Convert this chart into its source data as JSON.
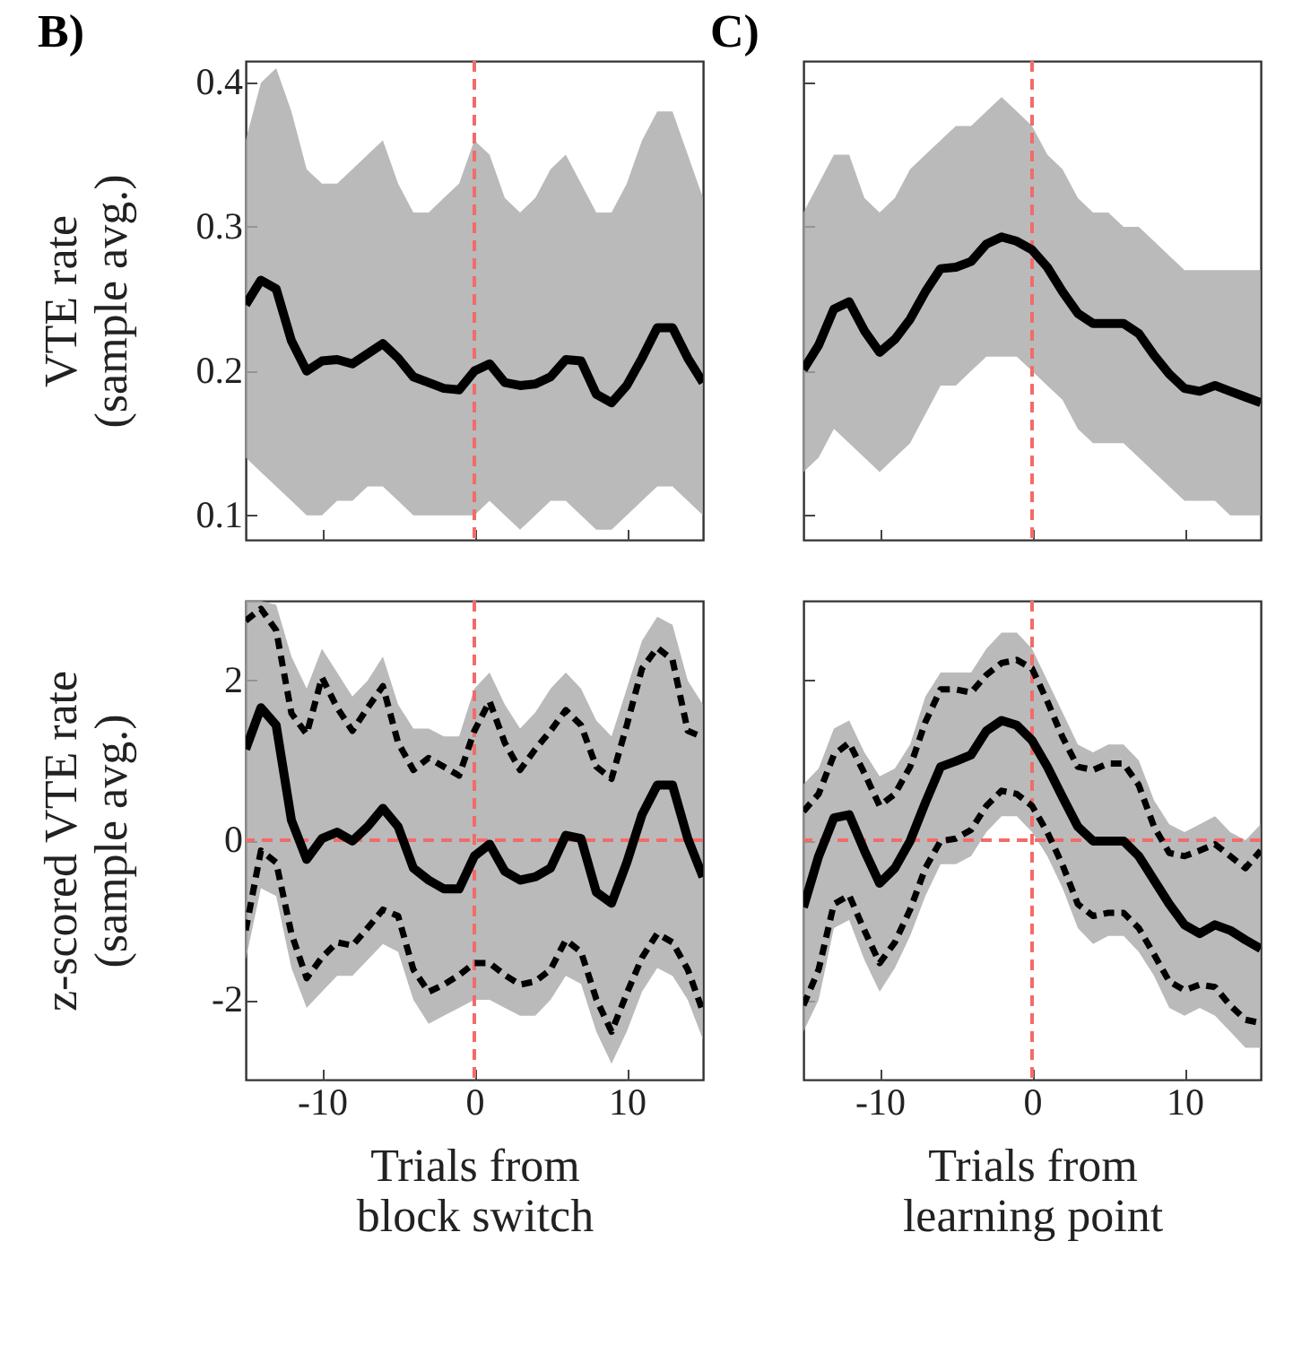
{
  "chart_data": [
    {
      "type": "line",
      "title": "B)",
      "ylabel": "VTE rate\n(sample avg.)",
      "x": [
        -15,
        -14,
        -13,
        -12,
        -11,
        -10,
        -9,
        -8,
        -7,
        -6,
        -5,
        -4,
        -3,
        -2,
        -1,
        0,
        1,
        2,
        3,
        4,
        5,
        6,
        7,
        8,
        9,
        10,
        11,
        12,
        13,
        14,
        15
      ],
      "xlim": [
        -15,
        15
      ],
      "xticks": [
        -10,
        0,
        10
      ],
      "ylim": [
        0.083,
        0.415
      ],
      "yticks": [
        0.1,
        0.2,
        0.3,
        0.4
      ],
      "tick_labels": "y",
      "series": [
        {
          "color": "#000000",
          "values": [
            0.246,
            0.263,
            0.257,
            0.221,
            0.2,
            0.207,
            0.208,
            0.205,
            0.212,
            0.219,
            0.209,
            0.196,
            0.192,
            0.188,
            0.187,
            0.2,
            0.205,
            0.192,
            0.19,
            0.191,
            0.196,
            0.208,
            0.207,
            0.184,
            0.178,
            0.19,
            0.209,
            0.23,
            0.23,
            0.209,
            0.192
          ],
          "upper": [
            0.36,
            0.4,
            0.41,
            0.38,
            0.34,
            0.33,
            0.33,
            0.34,
            0.35,
            0.36,
            0.33,
            0.31,
            0.31,
            0.32,
            0.33,
            0.36,
            0.35,
            0.32,
            0.31,
            0.32,
            0.34,
            0.35,
            0.33,
            0.31,
            0.31,
            0.33,
            0.36,
            0.38,
            0.38,
            0.35,
            0.32
          ],
          "lower": [
            0.14,
            0.13,
            0.12,
            0.11,
            0.1,
            0.1,
            0.11,
            0.11,
            0.12,
            0.12,
            0.11,
            0.1,
            0.1,
            0.1,
            0.1,
            0.1,
            0.11,
            0.1,
            0.09,
            0.1,
            0.11,
            0.11,
            0.1,
            0.09,
            0.09,
            0.1,
            0.11,
            0.12,
            0.12,
            0.11,
            0.1
          ]
        }
      ],
      "ref_lines": [
        {
          "axis": "x",
          "value": 0,
          "color": "#f26b6b",
          "line_style": "dashed"
        }
      ]
    },
    {
      "type": "line",
      "title": "C)",
      "x": [
        -15,
        -14,
        -13,
        -12,
        -11,
        -10,
        -9,
        -8,
        -7,
        -6,
        -5,
        -4,
        -3,
        -2,
        -1,
        0,
        1,
        2,
        3,
        4,
        5,
        6,
        7,
        8,
        9,
        10,
        11,
        12,
        13,
        14,
        15
      ],
      "xlim": [
        -15,
        15
      ],
      "xticks": [
        -10,
        0,
        10
      ],
      "ylim": [
        0.083,
        0.415
      ],
      "yticks": [
        0.1,
        0.2,
        0.3,
        0.4
      ],
      "tick_labels": false,
      "series": [
        {
          "color": "#000000",
          "values": [
            0.201,
            0.218,
            0.243,
            0.248,
            0.228,
            0.213,
            0.222,
            0.236,
            0.255,
            0.271,
            0.272,
            0.276,
            0.288,
            0.293,
            0.29,
            0.284,
            0.272,
            0.255,
            0.24,
            0.233,
            0.233,
            0.233,
            0.226,
            0.211,
            0.198,
            0.188,
            0.186,
            0.19,
            0.186,
            0.182,
            0.178
          ],
          "upper": [
            0.31,
            0.33,
            0.35,
            0.35,
            0.32,
            0.31,
            0.32,
            0.34,
            0.35,
            0.36,
            0.37,
            0.37,
            0.38,
            0.39,
            0.38,
            0.37,
            0.35,
            0.34,
            0.32,
            0.31,
            0.31,
            0.3,
            0.3,
            0.29,
            0.28,
            0.27,
            0.27,
            0.27,
            0.27,
            0.27,
            0.27
          ],
          "lower": [
            0.13,
            0.14,
            0.16,
            0.15,
            0.14,
            0.13,
            0.14,
            0.15,
            0.17,
            0.19,
            0.19,
            0.2,
            0.21,
            0.21,
            0.21,
            0.2,
            0.19,
            0.18,
            0.16,
            0.15,
            0.15,
            0.15,
            0.14,
            0.13,
            0.12,
            0.11,
            0.11,
            0.11,
            0.1,
            0.1,
            0.1
          ]
        }
      ],
      "ref_lines": [
        {
          "axis": "x",
          "value": 0,
          "color": "#f26b6b",
          "line_style": "dashed"
        }
      ]
    },
    {
      "type": "line",
      "xlabel": "Trials from\nblock switch",
      "ylabel": "z-scored VTE rate\n(sample avg.)",
      "x": [
        -15,
        -14,
        -13,
        -12,
        -11,
        -10,
        -9,
        -8,
        -7,
        -6,
        -5,
        -4,
        -3,
        -2,
        -1,
        0,
        1,
        2,
        3,
        4,
        5,
        6,
        7,
        8,
        9,
        10,
        11,
        12,
        13,
        14,
        15
      ],
      "xlim": [
        -15,
        15
      ],
      "xticks": [
        -10,
        0,
        10
      ],
      "ylim": [
        -3,
        3
      ],
      "yticks": [
        -2,
        0,
        2
      ],
      "series": [
        {
          "color": "#000000",
          "values": [
            1.14,
            1.66,
            1.44,
            0.25,
            -0.24,
            0.02,
            0.1,
            -0.01,
            0.17,
            0.4,
            0.17,
            -0.35,
            -0.5,
            -0.61,
            -0.61,
            -0.2,
            -0.05,
            -0.39,
            -0.5,
            -0.46,
            -0.35,
            0.06,
            0.02,
            -0.65,
            -0.79,
            -0.28,
            0.32,
            0.69,
            0.69,
            0.02,
            -0.46
          ],
          "upper": [
            3.0,
            3.0,
            2.95,
            2.3,
            1.9,
            2.4,
            2.1,
            1.8,
            2.0,
            2.3,
            1.7,
            1.4,
            1.4,
            1.3,
            1.3,
            1.9,
            2.1,
            1.7,
            1.4,
            1.6,
            1.9,
            2.1,
            1.9,
            1.5,
            1.3,
            1.9,
            2.5,
            2.8,
            2.7,
            2.0,
            1.7
          ],
          "lower": [
            -1.5,
            -0.6,
            -0.7,
            -1.6,
            -2.1,
            -1.9,
            -1.7,
            -1.7,
            -1.5,
            -1.3,
            -1.4,
            -2.0,
            -2.3,
            -2.2,
            -2.1,
            -2.0,
            -2.0,
            -2.1,
            -2.2,
            -2.2,
            -2.0,
            -1.7,
            -1.8,
            -2.4,
            -2.8,
            -2.4,
            -1.9,
            -1.6,
            -1.7,
            -2.0,
            -2.5
          ]
        },
        {
          "color": "#000000",
          "line_style": "dashed",
          "values": [
            2.75,
            2.9,
            2.63,
            1.59,
            1.33,
            2.04,
            1.66,
            1.37,
            1.66,
            1.93,
            1.22,
            0.88,
            1.03,
            0.92,
            0.81,
            1.37,
            1.74,
            1.22,
            0.88,
            1.14,
            1.37,
            1.63,
            1.44,
            0.92,
            0.77,
            1.44,
            2.15,
            2.41,
            2.26,
            1.37,
            1.29
          ]
        },
        {
          "color": "#000000",
          "line_style": "dashed",
          "values": [
            -1.13,
            -0.13,
            -0.28,
            -1.17,
            -1.73,
            -1.47,
            -1.28,
            -1.32,
            -1.1,
            -0.87,
            -0.95,
            -1.62,
            -1.9,
            -1.81,
            -1.69,
            -1.54,
            -1.54,
            -1.69,
            -1.81,
            -1.77,
            -1.62,
            -1.25,
            -1.4,
            -1.99,
            -2.4,
            -1.92,
            -1.47,
            -1.17,
            -1.28,
            -1.62,
            -2.15
          ]
        }
      ],
      "ref_lines": [
        {
          "axis": "x",
          "value": 0,
          "color": "#f26b6b",
          "line_style": "dashed"
        },
        {
          "axis": "y",
          "value": 0,
          "color": "#f26b6b",
          "line_style": "dashed"
        }
      ]
    },
    {
      "type": "line",
      "xlabel": "Trials from\nlearning point",
      "x": [
        -15,
        -14,
        -13,
        -12,
        -11,
        -10,
        -9,
        -8,
        -7,
        -6,
        -5,
        -4,
        -3,
        -2,
        -1,
        0,
        1,
        2,
        3,
        4,
        5,
        6,
        7,
        8,
        9,
        10,
        11,
        12,
        13,
        14,
        15
      ],
      "xlim": [
        -15,
        15
      ],
      "xticks": [
        -10,
        0,
        10
      ],
      "ylim": [
        -3,
        3
      ],
      "yticks": [
        -2,
        0,
        2
      ],
      "tick_labels": "x",
      "series": [
        {
          "color": "#000000",
          "values": [
            -0.84,
            -0.2,
            0.28,
            0.32,
            -0.13,
            -0.54,
            -0.35,
            -0.01,
            0.47,
            0.92,
            0.99,
            1.07,
            1.37,
            1.5,
            1.44,
            1.25,
            0.92,
            0.54,
            0.17,
            -0.01,
            -0.01,
            -0.01,
            -0.2,
            -0.5,
            -0.8,
            -1.06,
            -1.17,
            -1.06,
            -1.13,
            -1.25,
            -1.36
          ],
          "upper": [
            0.7,
            0.9,
            1.4,
            1.5,
            1.1,
            0.8,
            0.9,
            1.2,
            1.8,
            2.1,
            2.1,
            2.1,
            2.4,
            2.6,
            2.6,
            2.4,
            2.0,
            1.6,
            1.2,
            1.1,
            1.2,
            1.2,
            1.0,
            0.5,
            0.2,
            0.1,
            0.2,
            0.3,
            0.1,
            0.0,
            0.2
          ],
          "lower": [
            -2.4,
            -2.0,
            -1.1,
            -1.0,
            -1.5,
            -1.9,
            -1.6,
            -1.2,
            -0.7,
            -0.3,
            -0.3,
            -0.2,
            0.1,
            0.3,
            0.3,
            0.1,
            -0.2,
            -0.6,
            -1.1,
            -1.3,
            -1.2,
            -1.2,
            -1.4,
            -1.7,
            -2.1,
            -2.2,
            -2.1,
            -2.2,
            -2.4,
            -2.6,
            -2.6
          ]
        },
        {
          "color": "#000000",
          "line_style": "dashed",
          "values": [
            0.36,
            0.58,
            1.07,
            1.22,
            0.84,
            0.43,
            0.58,
            0.92,
            1.48,
            1.89,
            1.89,
            1.85,
            2.07,
            2.22,
            2.26,
            2.15,
            1.74,
            1.29,
            0.92,
            0.88,
            0.96,
            0.96,
            0.69,
            0.17,
            -0.16,
            -0.2,
            -0.13,
            -0.05,
            -0.2,
            -0.35,
            -0.13
          ]
        },
        {
          "color": "#000000",
          "line_style": "dashed",
          "values": [
            -2.07,
            -1.62,
            -0.8,
            -0.69,
            -1.13,
            -1.54,
            -1.28,
            -0.87,
            -0.35,
            -0.01,
            0.02,
            0.13,
            0.43,
            0.62,
            0.58,
            0.43,
            0.1,
            -0.31,
            -0.8,
            -0.95,
            -0.91,
            -0.91,
            -1.1,
            -1.43,
            -1.77,
            -1.88,
            -1.81,
            -1.84,
            -2.07,
            -2.25,
            -2.29
          ]
        }
      ],
      "ref_lines": [
        {
          "axis": "x",
          "value": 0,
          "color": "#f26b6b",
          "line_style": "dashed"
        },
        {
          "axis": "y",
          "value": 0,
          "color": "#f26b6b",
          "line_style": "dashed"
        }
      ]
    }
  ]
}
